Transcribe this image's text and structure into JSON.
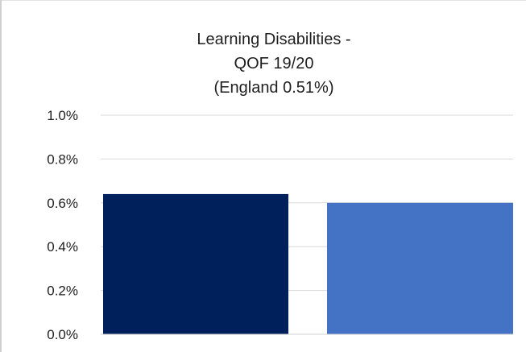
{
  "chart_data": {
    "type": "bar",
    "title_lines": [
      "Learning Disabilities -",
      "QOF 19/20",
      "(England 0.51%)"
    ],
    "categories": [
      "",
      ""
    ],
    "values": [
      0.64,
      0.6
    ],
    "colors": [
      "#00205b",
      "#4472c4"
    ],
    "ylim": [
      0,
      1.0
    ],
    "yticks": [
      0.0,
      0.2,
      0.4,
      0.6,
      0.8,
      1.0
    ],
    "ytick_labels": [
      "0.0%",
      "0.2%",
      "0.4%",
      "0.6%",
      "0.8%",
      "1.0%"
    ],
    "xlabel": "",
    "ylabel": "",
    "grid": true,
    "legend": "none"
  }
}
